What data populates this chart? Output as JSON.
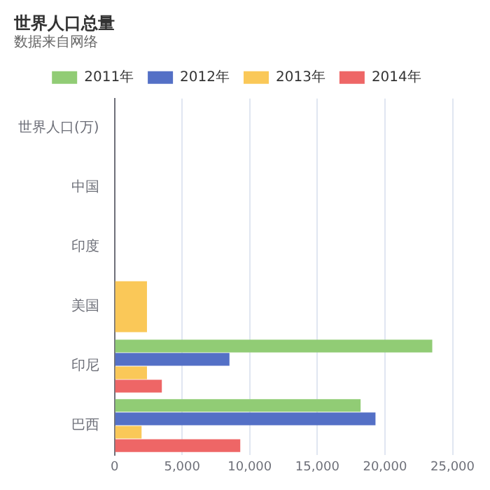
{
  "chart_data": {
    "type": "bar",
    "orientation": "horizontal",
    "title": "世界人口总量",
    "subtitle": "数据来自网络",
    "categories": [
      "世界人口(万)",
      "中国",
      "印度",
      "美国",
      "印尼",
      "巴西"
    ],
    "series": [
      {
        "name": "2011年",
        "color": "#91cc75",
        "values": [
          null,
          null,
          null,
          null,
          23500,
          18200
        ]
      },
      {
        "name": "2012年",
        "color": "#5470c6",
        "values": [
          null,
          null,
          null,
          null,
          8500,
          19300
        ]
      },
      {
        "name": "2013年",
        "color": "#fac858",
        "values": [
          null,
          null,
          null,
          2400,
          2400,
          2000
        ]
      },
      {
        "name": "2014年",
        "color": "#ee6666",
        "values": [
          null,
          null,
          null,
          null,
          3500,
          9300
        ]
      }
    ],
    "xlim": [
      0,
      25000
    ],
    "xticks": [
      0,
      {
        "value": 5000,
        "label": "5,000"
      },
      {
        "value": 10000,
        "label": "10,000"
      },
      {
        "value": 15000,
        "label": "15,000"
      },
      {
        "value": 20000,
        "label": "20,000"
      },
      {
        "value": 25000,
        "label": "25,000"
      }
    ],
    "grid": "x",
    "legend": "top"
  }
}
